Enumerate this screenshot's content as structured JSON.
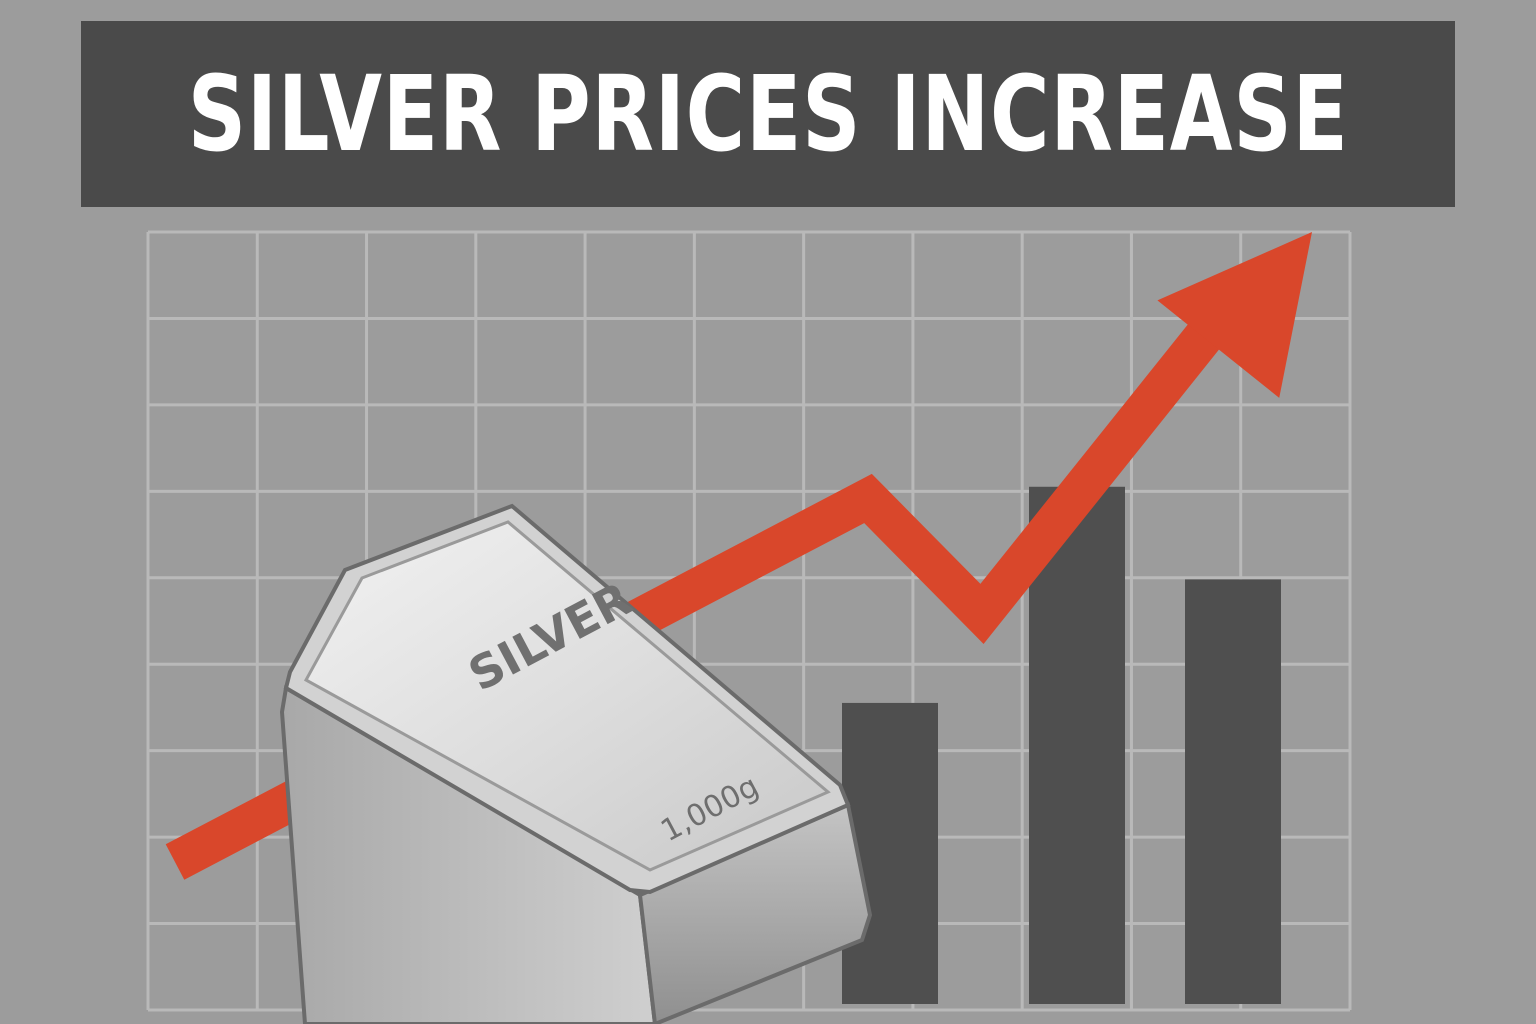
{
  "headline": {
    "text": "SILVER PRICES INCREASE"
  },
  "chart_data": {
    "type": "bar",
    "bars": [
      {
        "relative_height": 0.39
      },
      {
        "relative_height": 0.67
      },
      {
        "relative_height": 0.55
      }
    ],
    "trend": {
      "direction": "up",
      "color": "#d9472b",
      "points": [
        {
          "x": 0,
          "y": 0.0
        },
        {
          "x": 1,
          "y": 0.63
        },
        {
          "x": 2,
          "y": 0.43
        },
        {
          "x": 3,
          "y": 1.0
        }
      ]
    },
    "grid": true,
    "bar_color": "#4f4f4f"
  },
  "silver_bar": {
    "label": "SILVER",
    "weight": "1,000g"
  },
  "colors": {
    "background": "#9c9c9c",
    "banner": "#4a4a4a",
    "grid": "#b9b9b9",
    "arrow": "#d9472b",
    "bars": "#4f4f4f"
  }
}
